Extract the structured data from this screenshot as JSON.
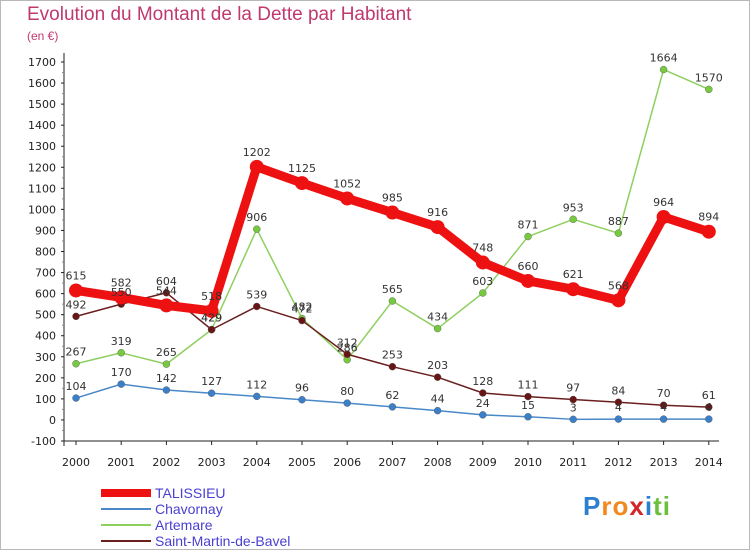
{
  "chart_data": {
    "type": "line",
    "title": "Evolution du Montant de la Dette par Habitant",
    "unit_label": "(en €)",
    "x": [
      "2000",
      "2001",
      "2002",
      "2003",
      "2004",
      "2005",
      "2006",
      "2007",
      "2008",
      "2009",
      "2010",
      "2011",
      "2012",
      "2013",
      "2014"
    ],
    "ylim": [
      -100,
      1700
    ],
    "yticks": [
      -100,
      0,
      100,
      200,
      300,
      400,
      500,
      600,
      700,
      800,
      900,
      1000,
      1100,
      1200,
      1300,
      1400,
      1500,
      1600,
      1700
    ],
    "grid": false,
    "legend_position": "bottom-left",
    "series": [
      {
        "name": "TALISSIEU",
        "color": "#ee1111",
        "marker": "#ee1111",
        "values": [
          615,
          582,
          544,
          518,
          1202,
          1125,
          1052,
          985,
          916,
          748,
          660,
          621,
          568,
          964,
          894
        ]
      },
      {
        "name": "Chavornay",
        "color": "#4a88c8",
        "marker": "#3a7fc8",
        "values": [
          104,
          170,
          142,
          127,
          112,
          96,
          80,
          62,
          44,
          24,
          15,
          3,
          4,
          4,
          4
        ]
      },
      {
        "name": "Artemare",
        "color": "#8ed060",
        "marker": "#77c93f",
        "values": [
          267,
          319,
          265,
          429,
          906,
          482,
          286,
          565,
          434,
          603,
          871,
          953,
          887,
          1664,
          1570
        ]
      },
      {
        "name": "Saint-Martin-de-Bavel",
        "color": "#6a1f1f",
        "marker": "#6a1515",
        "values": [
          492,
          550,
          604,
          429,
          539,
          472,
          312,
          253,
          203,
          128,
          111,
          97,
          84,
          70,
          61
        ]
      }
    ],
    "data_labels": [
      [
        "615",
        "582",
        "544",
        "518",
        "1202",
        "1125",
        "1052",
        "985",
        "916",
        "748",
        "660",
        "621",
        "568",
        "964",
        "894"
      ],
      [
        "104",
        "170",
        "142",
        "127",
        "112",
        "96",
        "80",
        "62",
        "44",
        "24",
        "15",
        "3",
        "4",
        "4",
        "4"
      ],
      [
        "267",
        "319",
        "265",
        "429",
        "906",
        "482",
        "286",
        "565",
        "434",
        "603",
        "871",
        "953",
        "887",
        "1664",
        "1570"
      ],
      [
        "492",
        "550",
        "604",
        "429",
        "539",
        "472",
        "312",
        "253",
        "203",
        "128",
        "111",
        "97",
        "84",
        "70",
        "61"
      ]
    ]
  },
  "logo": {
    "letters": [
      "P",
      "r",
      "o",
      "x",
      "i",
      "t",
      "i"
    ],
    "colors": [
      "#2d7fd0",
      "#f08a1f",
      "#f08a1f",
      "#d3262c",
      "#2d7fd0",
      "#6cbf3c",
      "#6cbf3c"
    ]
  }
}
